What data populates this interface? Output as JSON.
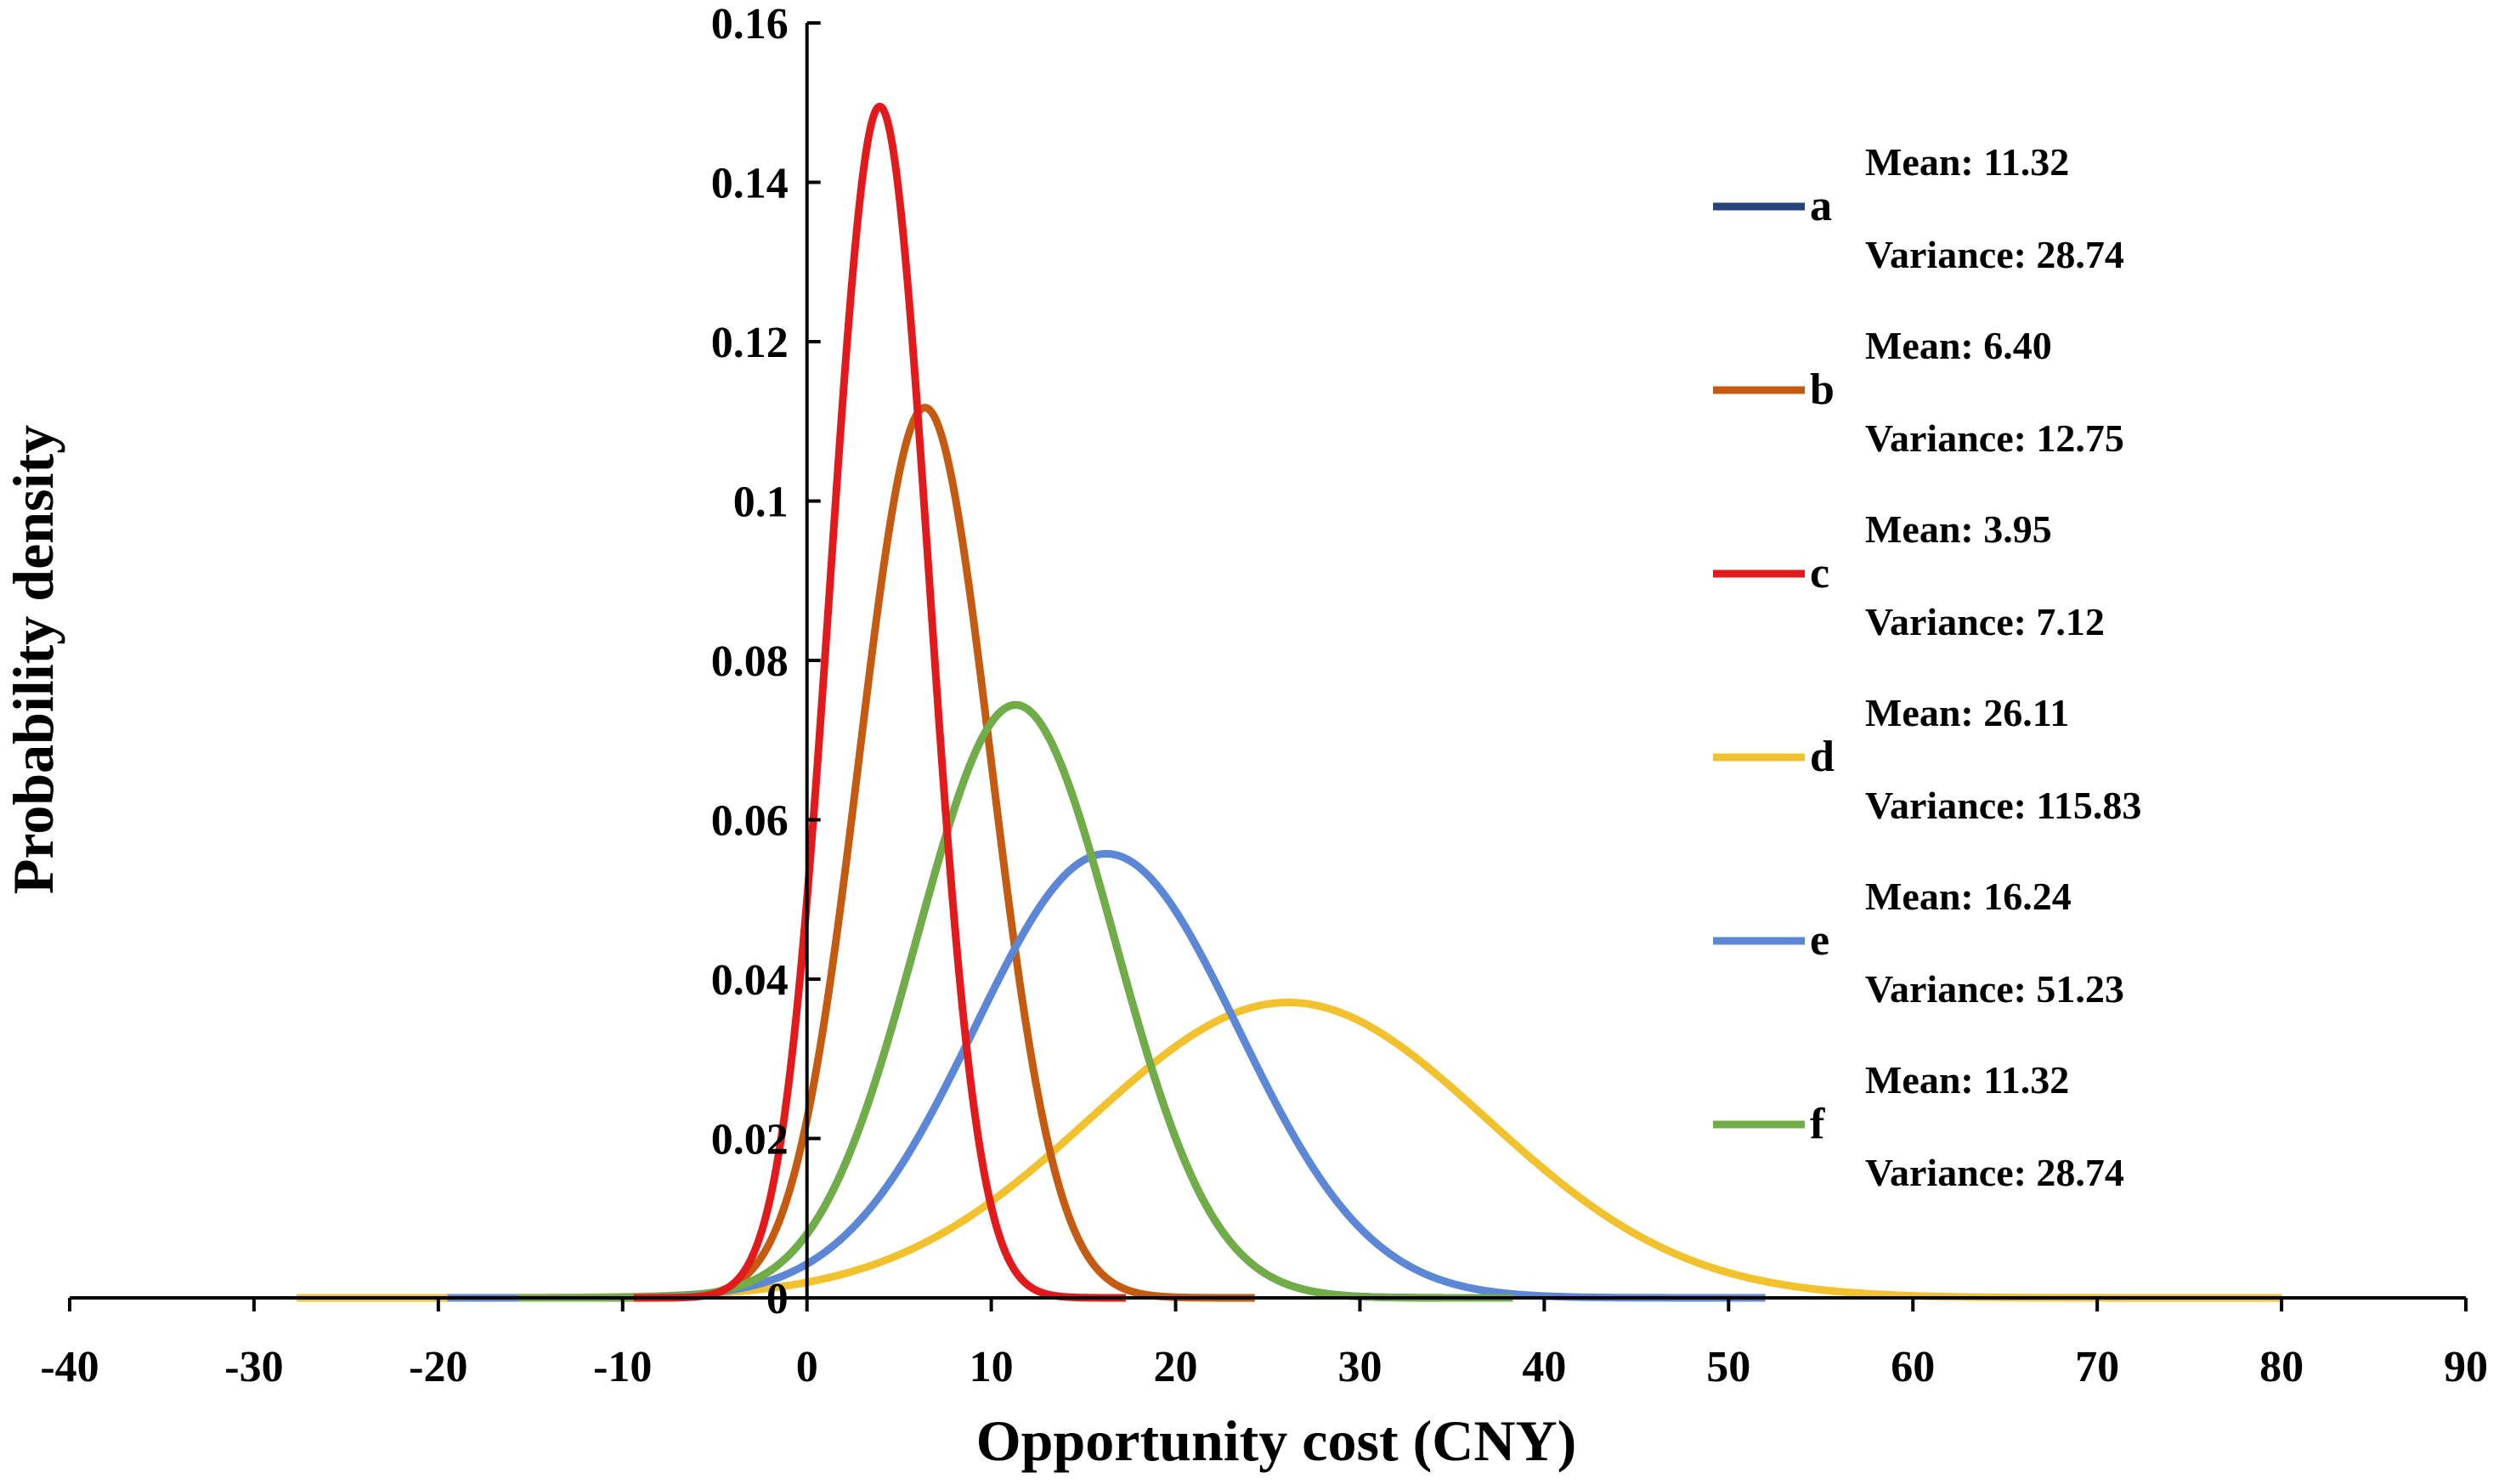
{
  "chart_data": {
    "type": "line",
    "title": "",
    "xlabel": "Opportunity cost (CNY)",
    "ylabel": "Probability density",
    "xlim": [
      -40,
      90
    ],
    "ylim": [
      0,
      0.16
    ],
    "x_ticks": [
      "-40",
      "-30",
      "-20",
      "-10",
      "0",
      "10",
      "20",
      "30",
      "40",
      "50",
      "60",
      "70",
      "80",
      "90"
    ],
    "y_ticks": [
      "0",
      "0.02",
      "0.04",
      "0.06",
      "0.08",
      "0.1",
      "0.12",
      "0.14",
      "0.16"
    ],
    "grid": false,
    "legend_position": "right",
    "series": [
      {
        "name": "a",
        "mean": 11.32,
        "variance": 28.74,
        "mean_label": "Mean: 11.32",
        "variance_label": "Variance: 28.74",
        "color": "#264478",
        "x_range": [
          -15.7,
          38.3
        ],
        "draw_order": 0
      },
      {
        "name": "b",
        "mean": 6.4,
        "variance": 12.75,
        "mean_label": "Mean: 6.40",
        "variance_label": "Variance: 12.75",
        "color": "#C55A11",
        "x_range": [
          -11.5,
          24.3
        ],
        "draw_order": 2
      },
      {
        "name": "c",
        "mean": 3.95,
        "variance": 7.12,
        "mean_label": "Mean: 3.95",
        "variance_label": "Variance: 7.12",
        "color": "#E31A1C",
        "x_range": [
          -9.4,
          17.3
        ],
        "draw_order": 5
      },
      {
        "name": "d",
        "mean": 26.11,
        "variance": 115.83,
        "mean_label": "Mean: 26.11",
        "variance_label": "Variance: 115.83",
        "color": "#F2C12E",
        "x_range": [
          -27.7,
          80.0
        ],
        "draw_order": 1
      },
      {
        "name": "e",
        "mean": 16.24,
        "variance": 51.23,
        "mean_label": "Mean: 16.24",
        "variance_label": "Variance: 51.23",
        "color": "#5B87D6",
        "x_range": [
          -19.5,
          52.0
        ],
        "draw_order": 3
      },
      {
        "name": "f",
        "mean": 11.32,
        "variance": 28.74,
        "mean_label": "Mean: 11.32",
        "variance_label": "Variance: 28.74",
        "color": "#70AD47",
        "x_range": [
          -15.7,
          38.3
        ],
        "draw_order": 4
      }
    ]
  }
}
